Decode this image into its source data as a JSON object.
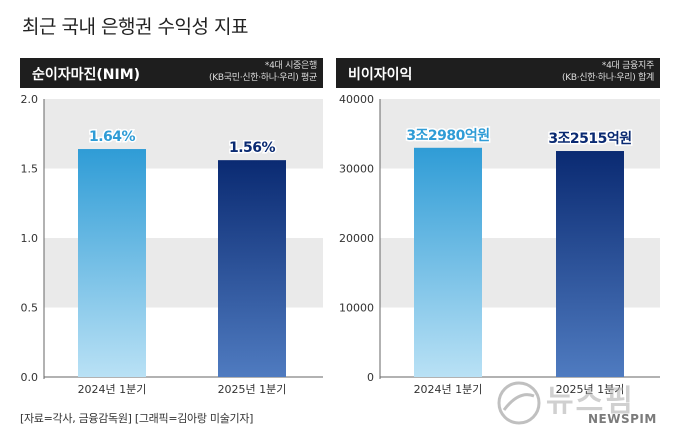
{
  "title": "최근 국내 은행권 수익성 지표",
  "source": "[자료=각사, 금융감독원] [그래픽=김아랑 미술기자]",
  "watermark": {
    "text": "뉴스핌",
    "sub": "NEWSPIM"
  },
  "colors": {
    "bar1_top": "#2f9cd6",
    "bar1_bottom": "#b9e1f5",
    "bar2_top": "#0a2a72",
    "bar2_bottom": "#4f7bc0",
    "band": "#eaeaea"
  },
  "panels": [
    {
      "title": "순이자마진(NIM)",
      "note_line1": "*4대 시중은행",
      "note_line2": "(KB국민·신한·하나·우리) 평균"
    },
    {
      "title": "비이자이익",
      "note_line1": "*4대 금융지주",
      "note_line2": "(KB·신한·하나·우리) 합계"
    }
  ],
  "chart_data": [
    {
      "type": "bar",
      "title": "순이자마진(NIM)",
      "categories": [
        "2024년 1분기",
        "2025년 1분기"
      ],
      "values": [
        1.64,
        1.56
      ],
      "data_labels": [
        "1.64%",
        "1.56%"
      ],
      "ylim": [
        0,
        2.0
      ],
      "yticks": [
        "0.0",
        "0.5",
        "1.0",
        "1.5",
        "2.0"
      ],
      "ytick_values": [
        0,
        0.5,
        1.0,
        1.5,
        2.0
      ],
      "grid": "alternating bands"
    },
    {
      "type": "bar",
      "title": "비이자이익",
      "categories": [
        "2024년 1분기",
        "2025년 1분기"
      ],
      "values": [
        32980,
        32515
      ],
      "data_labels": [
        "3조2980억원",
        "3조2515억원"
      ],
      "ylim": [
        0,
        40000
      ],
      "yticks": [
        "0",
        "10000",
        "20000",
        "30000",
        "40000"
      ],
      "ytick_values": [
        0,
        10000,
        20000,
        30000,
        40000
      ],
      "grid": "alternating bands"
    }
  ]
}
